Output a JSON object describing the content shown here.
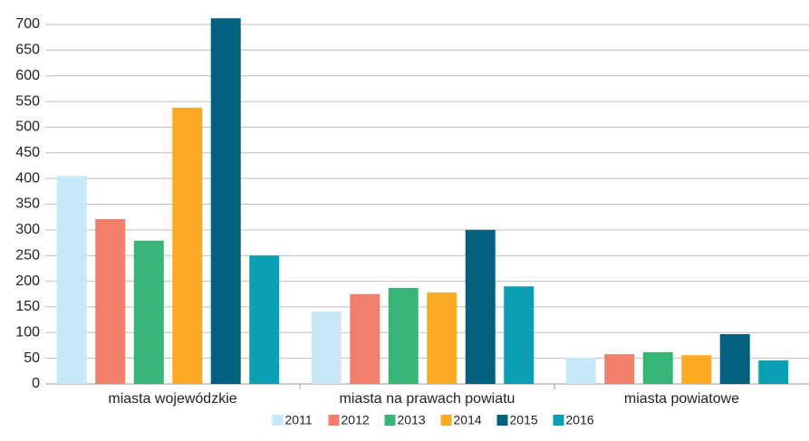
{
  "chart_data": {
    "type": "bar",
    "categories": [
      "miasta wojewódzkie",
      "miasta na prawach powiatu",
      "miasta powiatowe"
    ],
    "series": [
      {
        "name": "2011",
        "color": "#c6e8f7",
        "values": [
          405,
          141,
          51
        ]
      },
      {
        "name": "2012",
        "color": "#f0806a",
        "values": [
          321,
          175,
          58
        ]
      },
      {
        "name": "2013",
        "color": "#38b677",
        "values": [
          279,
          187,
          62
        ]
      },
      {
        "name": "2014",
        "color": "#fbab23",
        "values": [
          538,
          178,
          56
        ]
      },
      {
        "name": "2015",
        "color": "#03607f",
        "values": [
          712,
          300,
          97
        ]
      },
      {
        "name": "2016",
        "color": "#0aa0b3",
        "values": [
          250,
          190,
          46
        ]
      }
    ],
    "ylim": [
      0,
      720
    ],
    "yticks": [
      0,
      50,
      100,
      150,
      200,
      250,
      300,
      350,
      400,
      450,
      500,
      550,
      600,
      650,
      700
    ],
    "grid": true,
    "legend": "bottom"
  }
}
